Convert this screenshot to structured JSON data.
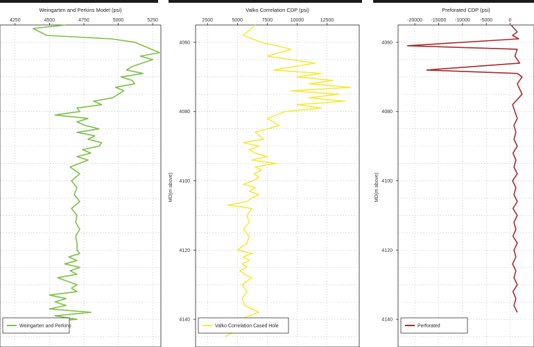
{
  "chart_data": [
    {
      "type": "line",
      "panel": "left",
      "title": "Weingarten and Perkins Model (psi)",
      "x_ticks": [
        4250,
        4500,
        4750,
        5000,
        5250
      ],
      "xlim": [
        4140,
        5310
      ],
      "ylabel": "",
      "y_ticks": [],
      "ylim": [
        4055,
        4148
      ],
      "legend": "Weingarten and Perkins",
      "legend_position": "bottom-left",
      "grid": true,
      "color": "#7ac142",
      "series": [
        {
          "name": "Weingarten and Perkins",
          "x": [
            4620,
            4380,
            4480,
            4950,
            5120,
            5180,
            5240,
            5300,
            5160,
            5250,
            5100,
            5060,
            5180,
            5020,
            5100,
            5120,
            4980,
            5040,
            4960,
            4820,
            4880,
            4700,
            4720,
            4540,
            4780,
            4700,
            4760,
            4860,
            4700,
            4830,
            4780,
            4880,
            4860,
            4740,
            4800,
            4700,
            4780,
            4650,
            4720,
            4660,
            4700,
            4680,
            4720,
            4660,
            4700,
            4690,
            4720,
            4690,
            4700,
            4700,
            4720,
            4640,
            4700,
            4610,
            4720,
            4650,
            4700,
            4560,
            4700,
            4660,
            4700,
            4500,
            4620,
            4540,
            4620,
            4500,
            4800,
            4540,
            4700,
            4400,
            4600
          ],
          "y": [
            4055,
            4056,
            4058,
            4059,
            4060,
            4061,
            4062,
            4063,
            4064,
            4065,
            4067,
            4068,
            4069,
            4070,
            4071,
            4072,
            4073,
            4074,
            4076,
            4077,
            4078,
            4079,
            4080,
            4081,
            4082,
            4083,
            4084,
            4085,
            4086,
            4087,
            4088,
            4089,
            4090,
            4091,
            4092,
            4093,
            4094,
            4096,
            4098,
            4100,
            4102,
            4104,
            4106,
            4108,
            4110,
            4112,
            4114,
            4116,
            4118,
            4120,
            4121,
            4122,
            4123,
            4124,
            4125,
            4126,
            4127,
            4128,
            4130,
            4131,
            4132,
            4133,
            4134,
            4135,
            4136,
            4137,
            4138,
            4139,
            4140,
            4141,
            4142
          ]
        }
      ]
    },
    {
      "type": "line",
      "panel": "middle",
      "title": "Valko Correlation CDP (psi)",
      "x_ticks": [
        2500,
        5000,
        7500,
        10000,
        12500
      ],
      "xlim": [
        1500,
        15200
      ],
      "ylabel": "MD(m above)",
      "y_ticks": [
        4060,
        4080,
        4100,
        4120,
        4140
      ],
      "ylim": [
        4055,
        4148
      ],
      "legend": "Valko Correlation Cased Hole",
      "legend_position": "bottom-left",
      "grid": true,
      "color": "#f7e93b",
      "series": [
        {
          "name": "Valko Correlation Cased Hole",
          "x": [
            6500,
            5500,
            7000,
            9500,
            7500,
            11500,
            8000,
            12000,
            10000,
            13000,
            11000,
            14500,
            9500,
            13500,
            11000,
            14000,
            10000,
            12000,
            9000,
            7500,
            8500,
            6500,
            7200,
            5500,
            6800,
            6000,
            6500,
            7500,
            6200,
            8200,
            6500,
            7000,
            6400,
            6800,
            6300,
            5500,
            6500,
            6000,
            6800,
            6200,
            5800,
            4200,
            6200,
            5800,
            6000,
            5500,
            6000,
            5800,
            5000,
            6200,
            5500,
            6000,
            5400,
            5800,
            5200,
            5600,
            6200,
            5400,
            5800,
            5400,
            5600,
            6800,
            5200,
            5000,
            5500,
            5000,
            4000
          ],
          "y": [
            4055,
            4058,
            4060,
            4062,
            4064,
            4066,
            4068,
            4069,
            4070,
            4071,
            4072,
            4073,
            4074,
            4075,
            4076,
            4077,
            4078,
            4079,
            4080,
            4082,
            4084,
            4086,
            4088,
            4089,
            4090,
            4091,
            4092,
            4093,
            4094,
            4095,
            4096,
            4097,
            4098,
            4099,
            4100,
            4101,
            4102,
            4103,
            4104,
            4105,
            4106,
            4107,
            4108,
            4110,
            4112,
            4114,
            4116,
            4118,
            4120,
            4121,
            4122,
            4123,
            4124,
            4125,
            4126,
            4127,
            4128,
            4130,
            4132,
            4134,
            4136,
            4138,
            4140,
            4141,
            4142,
            4143,
            4145
          ]
        }
      ]
    },
    {
      "type": "line",
      "panel": "right",
      "title": "Preforated CDP (psi)",
      "x_ticks": [
        -20000,
        -15000,
        -10000,
        -5000,
        0
      ],
      "x_tick_labels": [
        "-20000",
        "-15000",
        "-10000",
        "-5000",
        "0"
      ],
      "xlim": [
        -23500,
        5000
      ],
      "ylabel": "MD(m above)",
      "y_ticks": [
        4060,
        4080,
        4100,
        4120,
        4140
      ],
      "ylim": [
        4055,
        4148
      ],
      "legend": "Perforated",
      "legend_position": "bottom-left",
      "grid": true,
      "color": "#a8282c",
      "series": [
        {
          "name": "Perforated",
          "x": [
            200,
            1500,
            500,
            1800,
            -21500,
            1500,
            1000,
            2000,
            -17500,
            1500,
            2500,
            1500,
            2500,
            500,
            1000,
            1500,
            800,
            1200,
            800,
            1500,
            600,
            1200,
            800,
            1500,
            500,
            1200,
            800,
            1500,
            600,
            1500,
            800,
            1200,
            600,
            1500,
            800,
            1200,
            500,
            1200,
            800,
            1500,
            600,
            1200,
            800,
            1500
          ],
          "y": [
            4055,
            4057,
            4058,
            4059,
            4061,
            4062,
            4064,
            4066,
            4068,
            4069,
            4070,
            4072,
            4075,
            4078,
            4080,
            4082,
            4084,
            4086,
            4088,
            4090,
            4092,
            4094,
            4096,
            4098,
            4100,
            4102,
            4104,
            4106,
            4108,
            4110,
            4112,
            4114,
            4116,
            4118,
            4120,
            4122,
            4124,
            4126,
            4128,
            4130,
            4132,
            4134,
            4136,
            4138
          ]
        }
      ]
    }
  ]
}
